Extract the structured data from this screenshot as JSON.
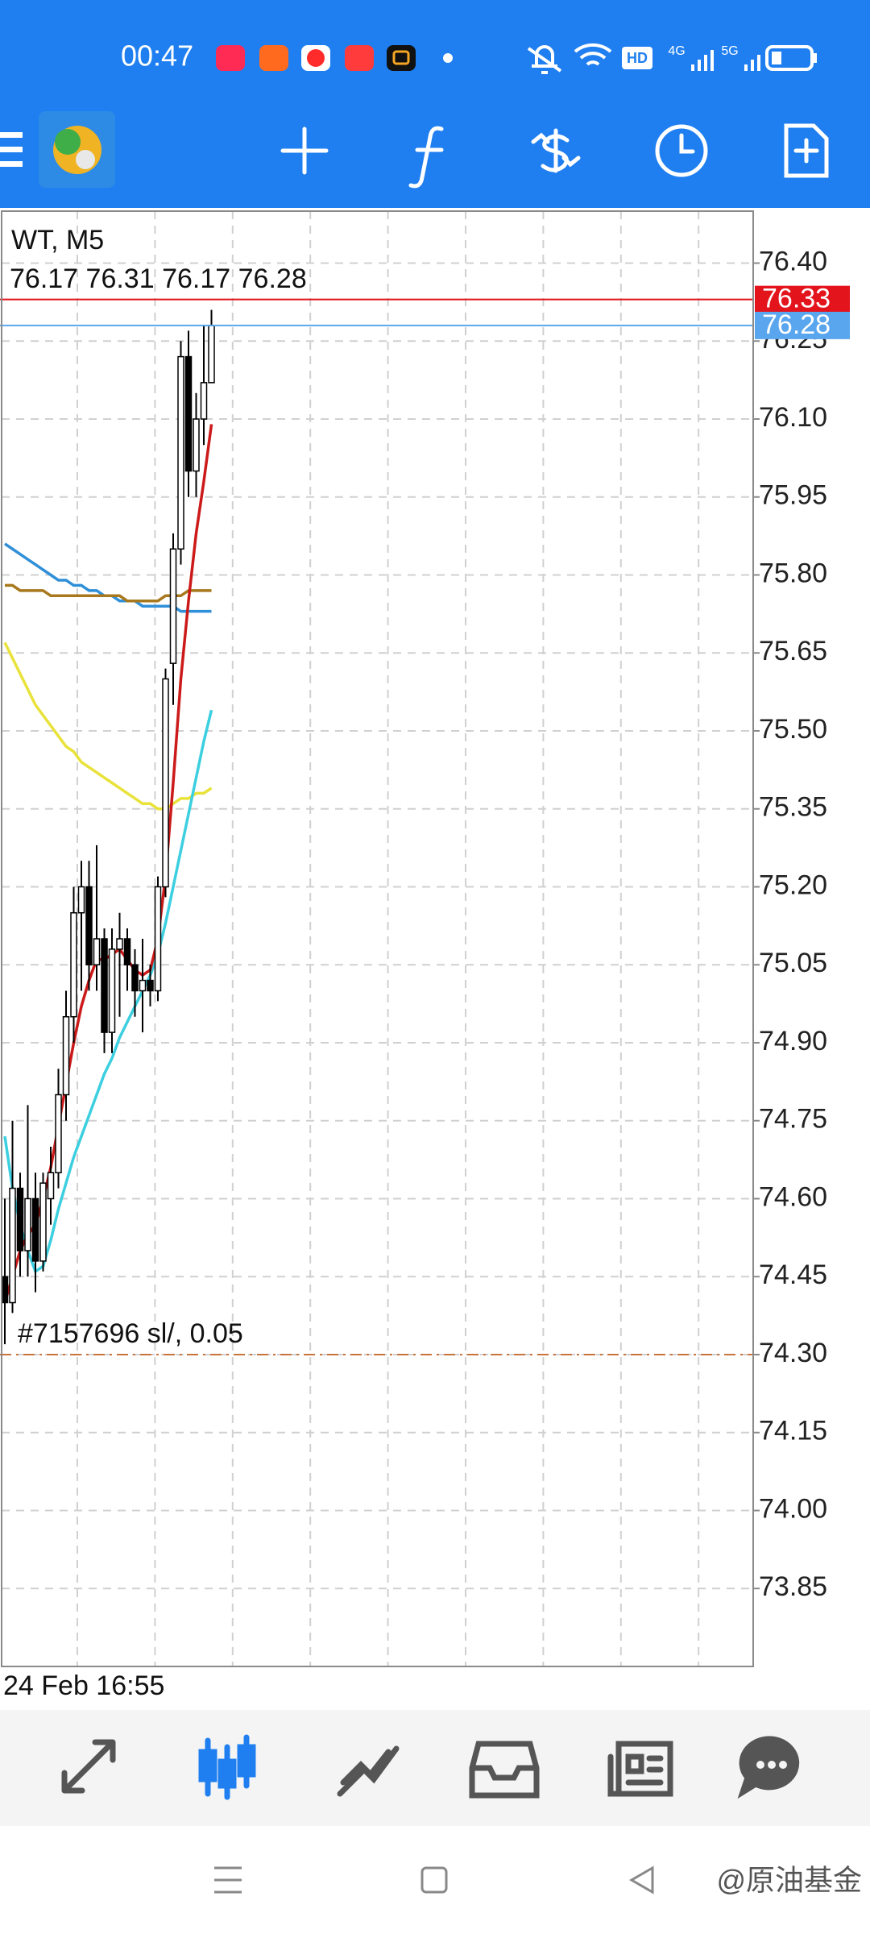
{
  "status_bar": {
    "time": "00:47",
    "network": [
      "HD",
      "4G",
      "5G"
    ]
  },
  "chart_data": {
    "type": "candlestick",
    "symbol": "WT, M5",
    "ohlc": [
      76.17,
      76.31,
      76.17,
      76.28
    ],
    "categories": [
      "24 Feb 16:55",
      null,
      null,
      null,
      null,
      null,
      null,
      null,
      null,
      null,
      null,
      null,
      null,
      null,
      null,
      null,
      null,
      null,
      null,
      null,
      null,
      null,
      null,
      null,
      null,
      null,
      null,
      null
    ],
    "open": [
      74.45,
      74.4,
      74.62,
      74.5,
      74.6,
      74.48,
      74.6,
      74.65,
      74.8,
      74.95,
      75.15,
      75.2,
      75.05,
      75.1,
      74.92,
      75.08,
      75.1,
      75.05,
      75.0,
      75.02,
      75.0,
      75.2,
      75.63,
      75.85,
      76.22,
      76.0,
      76.1,
      76.17
    ],
    "high": [
      74.6,
      74.75,
      74.65,
      74.78,
      74.65,
      74.65,
      74.7,
      74.85,
      75.0,
      75.2,
      75.25,
      75.25,
      75.28,
      75.12,
      75.12,
      75.15,
      75.12,
      75.08,
      75.1,
      75.05,
      75.22,
      75.62,
      75.88,
      76.25,
      76.27,
      76.15,
      76.28,
      76.31
    ],
    "low": [
      74.32,
      74.38,
      74.45,
      74.45,
      74.42,
      74.46,
      74.55,
      74.62,
      74.75,
      74.9,
      75.0,
      75.0,
      75.0,
      74.88,
      74.88,
      74.95,
      75.0,
      74.95,
      74.92,
      74.97,
      74.98,
      75.18,
      75.55,
      75.82,
      75.95,
      75.95,
      76.05,
      76.17
    ],
    "close": [
      74.4,
      74.62,
      74.5,
      74.6,
      74.48,
      74.63,
      74.65,
      74.8,
      74.95,
      75.15,
      75.2,
      75.05,
      75.1,
      74.92,
      75.08,
      75.1,
      75.05,
      75.0,
      75.02,
      75.0,
      75.2,
      75.6,
      75.85,
      76.22,
      76.0,
      76.1,
      76.17,
      76.28
    ],
    "up_color": "#ffffff",
    "down_color": "#000000",
    "series": [
      {
        "color": "#2f8fd8",
        "values": [
          75.86,
          75.85,
          75.84,
          75.83,
          75.82,
          75.81,
          75.8,
          75.79,
          75.79,
          75.78,
          75.78,
          75.77,
          75.77,
          75.76,
          75.76,
          75.75,
          75.75,
          75.75,
          75.74,
          75.74,
          75.74,
          75.74,
          75.74,
          75.73,
          75.73,
          75.73,
          75.73,
          75.73
        ]
      },
      {
        "color": "#a8781e",
        "values": [
          75.78,
          75.78,
          75.77,
          75.77,
          75.77,
          75.77,
          75.76,
          75.76,
          75.76,
          75.76,
          75.76,
          75.76,
          75.76,
          75.76,
          75.76,
          75.76,
          75.75,
          75.75,
          75.75,
          75.75,
          75.75,
          75.76,
          75.76,
          75.76,
          75.77,
          75.77,
          75.77,
          75.77
        ]
      },
      {
        "color": "#e8e23a",
        "values": [
          75.67,
          75.64,
          75.61,
          75.58,
          75.55,
          75.53,
          75.51,
          75.49,
          75.47,
          75.46,
          75.44,
          75.43,
          75.42,
          75.41,
          75.4,
          75.39,
          75.38,
          75.37,
          75.36,
          75.36,
          75.35,
          75.35,
          75.36,
          75.37,
          75.37,
          75.38,
          75.38,
          75.39
        ]
      },
      {
        "color": "#3ccfe0",
        "values": [
          74.72,
          74.62,
          74.55,
          74.5,
          74.46,
          74.47,
          74.52,
          74.58,
          74.63,
          74.68,
          74.72,
          74.76,
          74.8,
          74.84,
          74.87,
          74.91,
          74.94,
          74.97,
          75.0,
          75.03,
          75.07,
          75.13,
          75.2,
          75.27,
          75.34,
          75.41,
          75.48,
          75.54
        ]
      },
      {
        "color": "#cc1a1a",
        "values": [
          74.4,
          74.45,
          74.5,
          74.53,
          74.55,
          74.6,
          74.66,
          74.74,
          74.82,
          74.9,
          74.97,
          75.02,
          75.06,
          75.06,
          75.07,
          75.08,
          75.06,
          75.04,
          75.03,
          75.04,
          75.1,
          75.22,
          75.4,
          75.6,
          75.75,
          75.88,
          75.98,
          76.09
        ]
      }
    ],
    "ylim": [
      73.7,
      76.5
    ],
    "yticks": [
      {
        "value": 76.4,
        "label": "76.40"
      },
      76.25,
      {
        "value": 76.1,
        "label": "76.10"
      },
      75.95,
      {
        "value": 75.8,
        "label": "75.80"
      },
      75.65,
      {
        "value": 75.5,
        "label": "75.50"
      },
      75.35,
      {
        "value": 75.2,
        "label": "75.20"
      },
      75.05,
      {
        "value": 74.9,
        "label": "74.90"
      },
      74.75,
      {
        "value": 74.6,
        "label": "74.60"
      },
      74.45,
      {
        "value": 74.3,
        "label": "74.30"
      },
      74.15,
      {
        "value": 74.0,
        "label": "74.00"
      },
      73.85
    ],
    "grid": true,
    "price_lines": [
      {
        "value": 76.33,
        "color": "#e3141c"
      },
      {
        "value": 76.28,
        "color": "#5aa6ee"
      }
    ],
    "order_line": {
      "value": 74.3,
      "label": "#7157696 sl/, 0.05",
      "color": "#c8743a"
    }
  },
  "watermark": "@原油基金"
}
